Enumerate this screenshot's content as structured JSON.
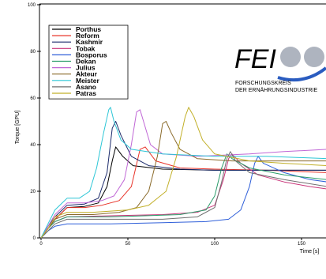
{
  "chart_data": {
    "type": "line",
    "title": "",
    "xlabel": "Time [s]",
    "ylabel": "Torque [GPU]",
    "xlim": [
      0,
      165
    ],
    "ylim": [
      0,
      100
    ],
    "x_ticks": [
      0,
      50,
      100,
      150
    ],
    "y_ticks": [
      0,
      20,
      40,
      60,
      80,
      100
    ],
    "grid": false,
    "legend_position": "top-left",
    "series": [
      {
        "name": "Porthus",
        "color": "#000000",
        "points": [
          [
            0,
            0
          ],
          [
            4,
            4
          ],
          [
            8,
            8
          ],
          [
            15,
            13
          ],
          [
            25,
            13.5
          ],
          [
            33,
            15
          ],
          [
            38,
            22
          ],
          [
            41,
            33
          ],
          [
            43,
            39
          ],
          [
            47,
            35
          ],
          [
            53,
            31
          ],
          [
            70,
            29.5
          ],
          [
            100,
            29
          ],
          [
            120,
            29
          ],
          [
            140,
            29
          ],
          [
            165,
            29
          ]
        ]
      },
      {
        "name": "Reform",
        "color": "#e8342a",
        "points": [
          [
            0,
            0
          ],
          [
            4,
            4
          ],
          [
            8,
            8
          ],
          [
            15,
            13
          ],
          [
            25,
            13
          ],
          [
            35,
            14
          ],
          [
            45,
            16
          ],
          [
            52,
            22
          ],
          [
            57,
            38
          ],
          [
            60,
            39
          ],
          [
            66,
            33
          ],
          [
            80,
            30
          ],
          [
            100,
            29.5
          ],
          [
            130,
            29
          ],
          [
            165,
            28
          ]
        ]
      },
      {
        "name": "Kashmir",
        "color": "#1b2a6b",
        "points": [
          [
            0,
            0
          ],
          [
            4,
            5
          ],
          [
            8,
            9
          ],
          [
            15,
            14
          ],
          [
            25,
            14.5
          ],
          [
            33,
            17
          ],
          [
            38,
            28
          ],
          [
            41,
            47
          ],
          [
            43,
            50
          ],
          [
            46,
            44
          ],
          [
            52,
            35
          ],
          [
            62,
            31
          ],
          [
            80,
            29.5
          ],
          [
            100,
            29
          ],
          [
            130,
            29
          ],
          [
            165,
            29
          ]
        ]
      },
      {
        "name": "Tobak",
        "color": "#c9367a",
        "points": [
          [
            0,
            0
          ],
          [
            4,
            4
          ],
          [
            8,
            7
          ],
          [
            15,
            9
          ],
          [
            40,
            9.5
          ],
          [
            70,
            10
          ],
          [
            90,
            11
          ],
          [
            100,
            14
          ],
          [
            105,
            25
          ],
          [
            108,
            34
          ],
          [
            110,
            36
          ],
          [
            115,
            32
          ],
          [
            125,
            27
          ],
          [
            140,
            24
          ],
          [
            155,
            22
          ],
          [
            165,
            21
          ]
        ]
      },
      {
        "name": "Bosporus",
        "color": "#2f5fd9",
        "points": [
          [
            0,
            0
          ],
          [
            4,
            3
          ],
          [
            8,
            5
          ],
          [
            15,
            6
          ],
          [
            40,
            6
          ],
          [
            70,
            6.5
          ],
          [
            95,
            7
          ],
          [
            108,
            8
          ],
          [
            115,
            12
          ],
          [
            120,
            22
          ],
          [
            123,
            32
          ],
          [
            125,
            35
          ],
          [
            128,
            32
          ],
          [
            140,
            28
          ],
          [
            155,
            25
          ],
          [
            165,
            24
          ]
        ]
      },
      {
        "name": "Dekan",
        "color": "#2a9c6a",
        "points": [
          [
            0,
            0
          ],
          [
            4,
            4
          ],
          [
            8,
            7
          ],
          [
            15,
            9
          ],
          [
            40,
            9
          ],
          [
            60,
            9.5
          ],
          [
            80,
            10
          ],
          [
            95,
            12
          ],
          [
            100,
            18
          ],
          [
            104,
            30
          ],
          [
            107,
            36
          ],
          [
            110,
            34
          ],
          [
            120,
            30
          ],
          [
            140,
            27
          ],
          [
            165,
            25
          ]
        ]
      },
      {
        "name": "Julius",
        "color": "#c067d6",
        "points": [
          [
            0,
            0
          ],
          [
            4,
            5
          ],
          [
            8,
            10
          ],
          [
            15,
            15
          ],
          [
            25,
            15
          ],
          [
            35,
            16
          ],
          [
            42,
            18
          ],
          [
            48,
            25
          ],
          [
            52,
            40
          ],
          [
            55,
            54
          ],
          [
            57,
            55
          ],
          [
            59,
            50
          ],
          [
            63,
            40
          ],
          [
            70,
            36
          ],
          [
            90,
            35
          ],
          [
            120,
            36
          ],
          [
            140,
            37
          ],
          [
            165,
            38
          ]
        ]
      },
      {
        "name": "Akteur",
        "color": "#8a6a2a",
        "points": [
          [
            0,
            0
          ],
          [
            4,
            4
          ],
          [
            8,
            8
          ],
          [
            15,
            10
          ],
          [
            30,
            10
          ],
          [
            45,
            11
          ],
          [
            55,
            13
          ],
          [
            62,
            20
          ],
          [
            67,
            35
          ],
          [
            70,
            49
          ],
          [
            72,
            50
          ],
          [
            75,
            45
          ],
          [
            80,
            38
          ],
          [
            90,
            34
          ],
          [
            110,
            33
          ],
          [
            140,
            33
          ],
          [
            165,
            33
          ]
        ]
      },
      {
        "name": "Meister",
        "color": "#2cc6d6",
        "points": [
          [
            0,
            0
          ],
          [
            4,
            6
          ],
          [
            8,
            12
          ],
          [
            15,
            17
          ],
          [
            22,
            17
          ],
          [
            28,
            20
          ],
          [
            32,
            30
          ],
          [
            36,
            45
          ],
          [
            39,
            55
          ],
          [
            40,
            56
          ],
          [
            42,
            50
          ],
          [
            46,
            42
          ],
          [
            52,
            38
          ],
          [
            70,
            36
          ],
          [
            100,
            35
          ],
          [
            130,
            35
          ],
          [
            165,
            34
          ]
        ]
      },
      {
        "name": "Asano",
        "color": "#6f6f6f",
        "points": [
          [
            0,
            0
          ],
          [
            4,
            3
          ],
          [
            8,
            6
          ],
          [
            15,
            8
          ],
          [
            40,
            8
          ],
          [
            70,
            8
          ],
          [
            90,
            9
          ],
          [
            100,
            13
          ],
          [
            104,
            24
          ],
          [
            107,
            34
          ],
          [
            109,
            37
          ],
          [
            112,
            33
          ],
          [
            120,
            28
          ],
          [
            140,
            25
          ],
          [
            165,
            22
          ]
        ]
      },
      {
        "name": "Patras",
        "color": "#c2b02a",
        "points": [
          [
            0,
            0
          ],
          [
            4,
            4
          ],
          [
            8,
            9
          ],
          [
            15,
            11
          ],
          [
            30,
            11
          ],
          [
            50,
            12
          ],
          [
            62,
            14
          ],
          [
            72,
            20
          ],
          [
            78,
            35
          ],
          [
            83,
            52
          ],
          [
            85,
            56
          ],
          [
            88,
            52
          ],
          [
            93,
            42
          ],
          [
            100,
            36
          ],
          [
            120,
            33
          ],
          [
            140,
            32
          ],
          [
            165,
            31
          ]
        ]
      }
    ]
  },
  "logo": {
    "brand": "FEI",
    "line1": "FORSCHUNGSKREIS",
    "line2": "DER ERNÄHRUNGSINDUSTRIE"
  }
}
